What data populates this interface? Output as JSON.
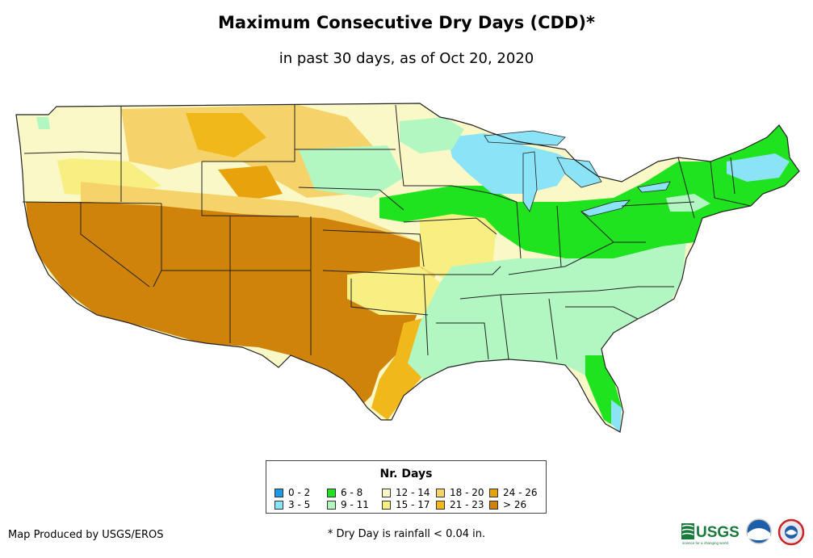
{
  "title": "Maximum Consecutive Dry Days (CDD)*",
  "subtitle": "in past 30 days, as of Oct 20, 2020",
  "legend": {
    "title": "Nr. Days",
    "items": [
      {
        "label": "0 - 2",
        "color": "#1a9be8"
      },
      {
        "label": "3 - 5",
        "color": "#8ae3f6"
      },
      {
        "label": "6 - 8",
        "color": "#1ee31e"
      },
      {
        "label": "9 - 11",
        "color": "#b2f7c2"
      },
      {
        "label": "12 - 14",
        "color": "#fbf8c8"
      },
      {
        "label": "15 - 17",
        "color": "#f8ef82"
      },
      {
        "label": "18 - 20",
        "color": "#f5d36a"
      },
      {
        "label": "21 - 23",
        "color": "#f1b81c"
      },
      {
        "label": "24 - 26",
        "color": "#e8a30c"
      },
      {
        "label": "> 26",
        "color": "#cf830a"
      }
    ]
  },
  "credit": "Map Produced by USGS/EROS",
  "footnote": "* Dry Day is rainfall < 0.04 in.",
  "logos": {
    "usgs": "USGS",
    "usgs_tagline": "science for a changing world",
    "noaa": "noaa"
  }
}
